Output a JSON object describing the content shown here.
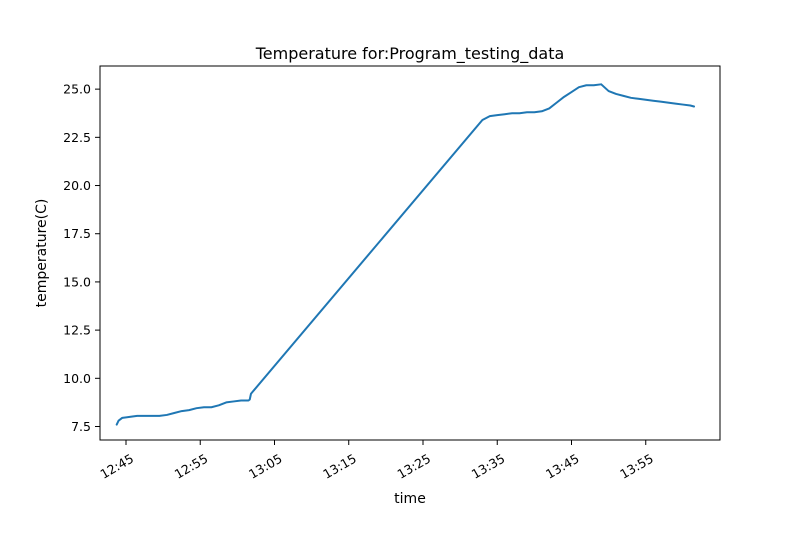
{
  "chart_data": {
    "type": "line",
    "title": "Temperature for:Program_testing_data",
    "xlabel": "time",
    "ylabel": "temperature(C)",
    "xlim": [
      "12:41:30",
      "14:05:00"
    ],
    "ylim": [
      6.8,
      26.2
    ],
    "x_ticks": [
      "12:45",
      "12:55",
      "13:05",
      "13:15",
      "13:25",
      "13:35",
      "13:45",
      "13:55"
    ],
    "y_ticks": [
      "7.5",
      "10.0",
      "12.5",
      "15.0",
      "17.5",
      "20.0",
      "22.5",
      "25.0"
    ],
    "grid": false,
    "series": [
      {
        "color": "#1f77b4",
        "x": [
          "12:43:45",
          "12:44:00",
          "12:44:30",
          "12:45:30",
          "12:46:30",
          "12:47:30",
          "12:48:30",
          "12:49:30",
          "12:50:30",
          "12:51:30",
          "12:52:30",
          "12:53:30",
          "12:54:30",
          "12:55:30",
          "12:56:30",
          "12:57:30",
          "12:58:30",
          "12:59:30",
          "13:00:30",
          "13:01:30",
          "13:01:40",
          "13:01:50",
          "13:33:00",
          "13:34:00",
          "13:35:00",
          "13:36:00",
          "13:37:00",
          "13:38:00",
          "13:39:00",
          "13:40:00",
          "13:41:00",
          "13:42:00",
          "13:43:00",
          "13:44:00",
          "13:45:00",
          "13:46:00",
          "13:47:00",
          "13:48:00",
          "13:49:00",
          "13:50:00",
          "13:51:00",
          "13:52:00",
          "13:53:00",
          "13:54:00",
          "13:55:00",
          "13:56:00",
          "13:57:00",
          "13:58:00",
          "13:59:00",
          "14:00:00",
          "14:01:00",
          "14:01:30"
        ],
        "y": [
          7.6,
          7.8,
          7.95,
          8.0,
          8.05,
          8.05,
          8.05,
          8.05,
          8.1,
          8.2,
          8.3,
          8.35,
          8.45,
          8.5,
          8.5,
          8.6,
          8.75,
          8.8,
          8.85,
          8.85,
          8.9,
          9.2,
          23.4,
          23.6,
          23.65,
          23.7,
          23.75,
          23.75,
          23.8,
          23.8,
          23.85,
          24.0,
          24.3,
          24.6,
          24.85,
          25.1,
          25.2,
          25.2,
          25.25,
          24.9,
          24.75,
          24.65,
          24.55,
          24.5,
          24.45,
          24.4,
          24.35,
          24.3,
          24.25,
          24.2,
          24.15,
          24.1
        ]
      }
    ]
  }
}
